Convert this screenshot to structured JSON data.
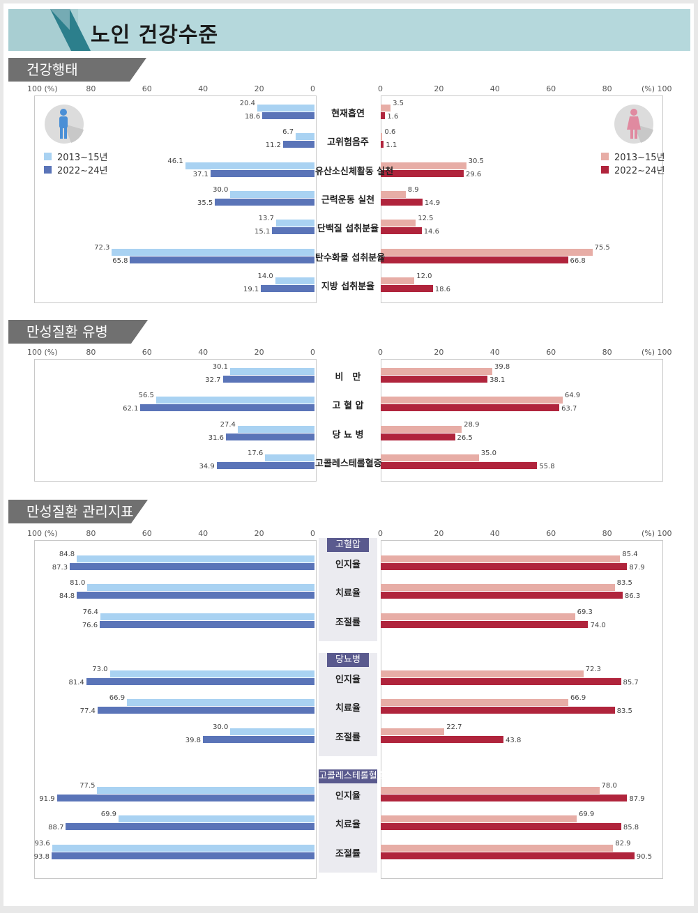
{
  "title": "노인 건강수준",
  "colors": {
    "male_2013": "#a9d2f2",
    "male_2022": "#5a74b8",
    "female_2013": "#e7ada6",
    "female_2022": "#b0243c",
    "section_tab": "#707070",
    "banner": "#b5d8dc",
    "banner_accent": "#2c7f8c",
    "group_header": "#5a5a8e"
  },
  "axis": {
    "left_ticks": [
      "100 (%)",
      "80",
      "60",
      "40",
      "20",
      "0"
    ],
    "right_ticks": [
      "0",
      "20",
      "40",
      "60",
      "80",
      "(%) 100"
    ]
  },
  "legend": {
    "male": [
      "2013~15년",
      "2022~24년"
    ],
    "female": [
      "2013~15년",
      "2022~24년"
    ]
  },
  "icons": {
    "male": "male-figure-icon",
    "female": "female-figure-icon"
  },
  "chart_data": [
    {
      "type": "bar",
      "title": "건강행태",
      "categories": [
        "현재흡연",
        "고위험음주",
        "유산소신체활동 실천",
        "근력운동 실천",
        "단백질 섭취분율",
        "탄수화물 섭취분율",
        "지방 섭취분율"
      ],
      "series": [
        {
          "name": "2013~15년",
          "side": "male",
          "values": [
            20.4,
            6.7,
            46.1,
            30.0,
            13.7,
            72.3,
            14.0
          ]
        },
        {
          "name": "2022~24년",
          "side": "male",
          "values": [
            18.6,
            11.2,
            37.1,
            35.5,
            15.1,
            65.8,
            19.1
          ]
        },
        {
          "name": "2013~15년",
          "side": "female",
          "values": [
            3.5,
            0.6,
            30.5,
            8.9,
            12.5,
            75.5,
            12.0
          ]
        },
        {
          "name": "2022~24년",
          "side": "female",
          "values": [
            1.6,
            1.1,
            29.6,
            14.9,
            14.6,
            66.8,
            18.6
          ]
        }
      ],
      "xlim": [
        0,
        100
      ]
    },
    {
      "type": "bar",
      "title": "만성질환 유병",
      "categories": [
        "비　만",
        "고 혈 압",
        "당 뇨 병",
        "고콜레스테롤혈증"
      ],
      "series": [
        {
          "name": "2013~15년",
          "side": "male",
          "values": [
            30.1,
            56.5,
            27.4,
            17.6
          ]
        },
        {
          "name": "2022~24년",
          "side": "male",
          "values": [
            32.7,
            62.1,
            31.6,
            34.9
          ]
        },
        {
          "name": "2013~15년",
          "side": "female",
          "values": [
            39.8,
            64.9,
            28.9,
            35.0
          ]
        },
        {
          "name": "2022~24년",
          "side": "female",
          "values": [
            38.1,
            63.7,
            26.5,
            55.8
          ]
        }
      ],
      "xlim": [
        0,
        100
      ]
    },
    {
      "type": "bar",
      "title": "만성질환 관리지표",
      "groups": [
        {
          "name": "고혈압",
          "categories": [
            "인지율",
            "치료율",
            "조절률"
          ],
          "series": [
            {
              "name": "2013~15년",
              "side": "male",
              "values": [
                84.8,
                81.0,
                76.4
              ]
            },
            {
              "name": "2022~24년",
              "side": "male",
              "values": [
                87.3,
                84.8,
                76.6
              ]
            },
            {
              "name": "2013~15년",
              "side": "female",
              "values": [
                85.4,
                83.5,
                69.3
              ]
            },
            {
              "name": "2022~24년",
              "side": "female",
              "values": [
                87.9,
                86.3,
                74.0
              ]
            }
          ]
        },
        {
          "name": "당뇨병",
          "categories": [
            "인지율",
            "치료율",
            "조절률"
          ],
          "series": [
            {
              "name": "2013~15년",
              "side": "male",
              "values": [
                73.0,
                66.9,
                30.0
              ]
            },
            {
              "name": "2022~24년",
              "side": "male",
              "values": [
                81.4,
                77.4,
                39.8
              ]
            },
            {
              "name": "2013~15년",
              "side": "female",
              "values": [
                72.3,
                66.9,
                22.7
              ]
            },
            {
              "name": "2022~24년",
              "side": "female",
              "values": [
                85.7,
                83.5,
                43.8
              ]
            }
          ]
        },
        {
          "name": "고콜레스테롤혈증",
          "categories": [
            "인지율",
            "치료율",
            "조절률"
          ],
          "series": [
            {
              "name": "2013~15년",
              "side": "male",
              "values": [
                77.5,
                69.9,
                93.6
              ]
            },
            {
              "name": "2022~24년",
              "side": "male",
              "values": [
                91.9,
                88.7,
                93.8
              ]
            },
            {
              "name": "2013~15년",
              "side": "female",
              "values": [
                78.0,
                69.9,
                82.9
              ]
            },
            {
              "name": "2022~24년",
              "side": "female",
              "values": [
                87.9,
                85.8,
                90.5
              ]
            }
          ]
        }
      ],
      "xlim": [
        0,
        100
      ]
    }
  ]
}
